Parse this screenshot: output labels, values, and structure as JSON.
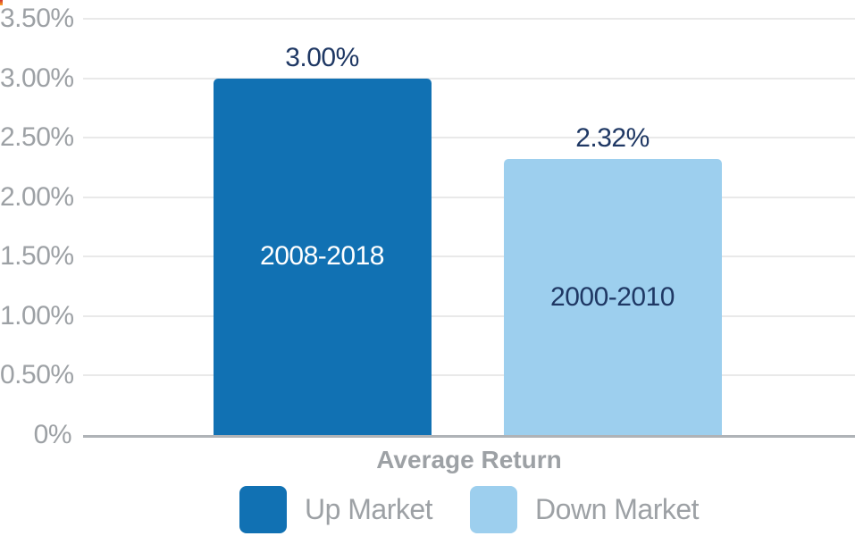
{
  "chart_data": {
    "type": "bar",
    "title": "",
    "xlabel": "Average Return",
    "ylabel": "",
    "ylim": [
      0,
      3.5
    ],
    "grid": true,
    "legend_position": "bottom",
    "yticks": [
      {
        "value": 3.5,
        "label": "3.50%"
      },
      {
        "value": 3.0,
        "label": "3.00%"
      },
      {
        "value": 2.5,
        "label": "2.50%"
      },
      {
        "value": 2.0,
        "label": "2.00%"
      },
      {
        "value": 1.5,
        "label": "1.50%"
      },
      {
        "value": 1.0,
        "label": "1.00%"
      },
      {
        "value": 0.5,
        "label": "0.50%"
      },
      {
        "value": 0.0,
        "label": "0%"
      }
    ],
    "bars": [
      {
        "category": "2008-2018",
        "value": 3.0,
        "value_label": "3.00%",
        "legend_label": "Up Market",
        "color": "#1171B3",
        "bar_text_color": "#FFFFFF"
      },
      {
        "category": "2000-2010",
        "value": 2.32,
        "value_label": "2.32%",
        "legend_label": "Down Market",
        "color": "#9DCFEE",
        "bar_text_color": "#1F3864"
      }
    ]
  },
  "colors": {
    "value_label_text": "#1F3864",
    "axis_text": "#9DA1A5",
    "gridline": "#E9E9E9",
    "baseline": "#AFB3B7",
    "background": "#FFFFFF"
  }
}
